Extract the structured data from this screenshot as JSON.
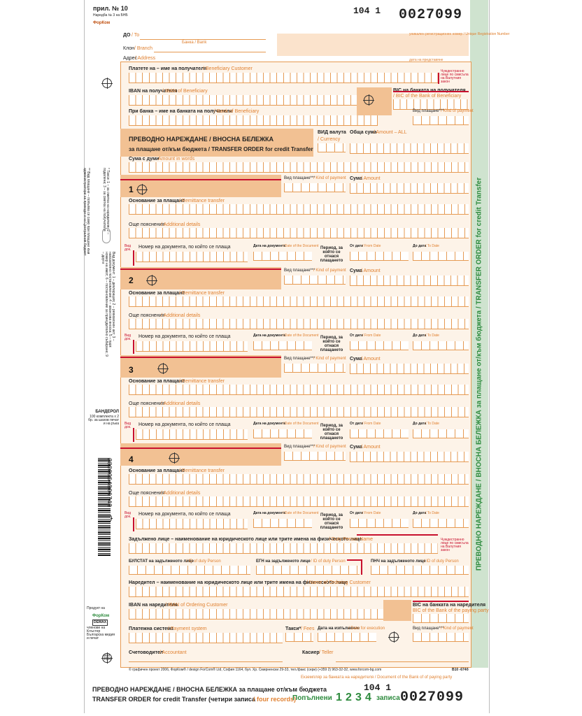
{
  "header": {
    "form_no": "прил. № 10",
    "form_sub": "Наредба № 3 на БНБ",
    "brand": "ФорКом",
    "code_left": "104 1",
    "serial": "0027099"
  },
  "top": {
    "to": "ДО",
    "to_en": "/ To",
    "bank_en": "Банка / Bank",
    "branch": "Клон",
    "branch_en": "/ Branch",
    "address": "Адрес",
    "address_en": "/ Address",
    "reg_no": "уникален регистрационен номер / Unique Registration Number",
    "date_submit": "дата на представяне"
  },
  "beneficiary": {
    "pay_to": "Платете на – име на получателя",
    "pay_to_en": "/ Beneficiary Customer",
    "iban": "IBAN на получателя",
    "iban_en": "/ IBAN of Beneficiary",
    "bic": "BIC на банката на получателя",
    "bic_en": "/ BIC of the Bank of Beneficiary",
    "at_bank": "При банка – име на банката на получателя",
    "at_bank_en": "/ Bank of Beneficiary",
    "kind": "Вид плащане***",
    "kind_en": "/ Kind of payment",
    "foreign": "Чуждестранно лице по смисъла на Валутния закон"
  },
  "title": {
    "main": "ПРЕВОДНО НАРЕЖДАНЕ / ВНОСНА БЕЛЕЖКА",
    "sub": "за плащане от/към бюджета / TRANSFER ORDER for credit Transfer",
    "currency": "ВИД валута",
    "currency_en": "/ Currency",
    "total": "Обща сума",
    "total_en": "/ Amount – ALL",
    "words": "Сума с думи",
    "words_en": "Amount in words"
  },
  "sections": [
    {
      "no": "1",
      "reason": "Основание за плащане",
      "reason_en": "/ Remittance transfer",
      "more": "Още пояснения",
      "more_en": "/ Additional details",
      "doc": "Номер на документа, по който се плаща",
      "doc_date": "Дата на документа",
      "doc_date_en": "/ Date of the Document",
      "period": "Период, за който се отнася плащането",
      "from": "От дата",
      "from_en": "/ From Date",
      "to": "До дата",
      "to_en": "/ To Date",
      "kind": "Вид плащане***",
      "kind_en": "/ Kind of payment",
      "amount": "Сума",
      "amount_en": "/ Amount",
      "vid": "Вид док."
    },
    {
      "no": "2",
      "reason": "Основание за плащане",
      "reason_en": "/ Remittance transfer",
      "more": "Още пояснения",
      "more_en": "/ Additional details",
      "doc": "Номер на документа, по който се плаща",
      "doc_date": "Дата на документа",
      "doc_date_en": "/ Date of the Document",
      "period": "Период, за който се отнася плащането",
      "from": "От дата",
      "from_en": "/ From Date",
      "to": "До дата",
      "to_en": "/ To Date",
      "kind": "Вид плащане***",
      "kind_en": "/ Kind of payment",
      "amount": "Сума",
      "amount_en": "/ Amount",
      "vid": "Вид док."
    },
    {
      "no": "3",
      "reason": "Основание за плащане",
      "reason_en": "/ Remittance transfer",
      "more": "Още пояснения",
      "more_en": "/ Additional details",
      "doc": "Номер на документа, по който се плаща",
      "doc_date": "Дата на документа",
      "doc_date_en": "/ Date of the Document",
      "period": "Период, за който се отнася плащането",
      "from": "От дата",
      "from_en": "/ From Date",
      "to": "До дата",
      "to_en": "/ To Date",
      "kind": "Вид плащане***",
      "kind_en": "/ Kind of payment",
      "amount": "Сума",
      "amount_en": "/ Amount",
      "vid": "Вид док."
    },
    {
      "no": "4",
      "reason": "Основание за плащане",
      "reason_en": "/ Remittance transfer",
      "more": "Още пояснения",
      "more_en": "/ Additional details",
      "doc": "Номер на документа, по който се плаща",
      "doc_date": "Дата на документа",
      "doc_date_en": "/ Date of the Document",
      "period": "Период, за който се отнася плащането",
      "from": "От дата",
      "from_en": "/ From Date",
      "to": "До дата",
      "to_en": "/ To Date",
      "kind": "Вид плащане***",
      "kind_en": "/ Kind of payment",
      "amount": "Сума",
      "amount_en": "/ Amount",
      "vid": "Вид док."
    }
  ],
  "bottom": {
    "duty": "Задължено лице – наименование на юридическото лице или трите имена на физическото лице",
    "duty_en": "/ Duty Person Name",
    "bulstat": "БУЛСТАТ на задълженото лице",
    "bulstat_en": "/ ID of duty Person",
    "egn": "ЕГН на задълженото лице",
    "egn_en": "/ ID of duty Person",
    "pnch": "ПНЧ на задълженото лице",
    "pnch_en": "/ ID of duty Person",
    "orderer": "Наредител – наименование на юридическото лице или трите имена на физическото лице",
    "orderer_en": "/ Name of Ordering Customer",
    "iban": "IBAN на наредителя",
    "iban_en": "/ IBAN of Ordering Customer",
    "bic": "BIC на банката на наредителя",
    "bic_en": "BIC of the Bank of the paying party",
    "system": "Платежна система",
    "system_en": "/ Payment system",
    "fees": "Такси*",
    "fees_en": "/ Fees",
    "exec_date": "Дата на изпълнение",
    "exec_date_en": "/ Date for execution",
    "kind": "Вид плащане***",
    "kind_en": "/ Kind of payment",
    "accountant": "Счетоводител",
    "accountant_en": "/ Accountant",
    "cashier": "Касиер",
    "cashier_en": "/ Teller",
    "foreign": "Чуждестранно лице по смисъла на Валутния закон"
  },
  "footer": {
    "copyright": "© графичен проект 2006, ФорКом® / design ForCom® Ltd, София 1164, бул. Хр. Смирненски 29-33, тел./факс (сери) (+359 2) 963-32-32, www.forcom-bg.com",
    "code": "В10 -674б",
    "copy_note": "Екземпляр за банката на наредителя / Document of the Bank of of paying party",
    "title1": "ПРЕВОДНО НАРЕЖДАНЕ / ВНОСНА БЕЛЕЖКА за плащане от/към бюджета",
    "title2": "TRANSFER ORDER for credit Transfer (четири записа",
    "title2b": "/ four records)",
    "filled": "Попълнени",
    "n1": "1",
    "n2": "2",
    "n3": "3",
    "n4": "4",
    "records": "записа",
    "code_left": "104 1",
    "serial": "0027099"
  },
  "side": {
    "green_vertical": "ПРЕВОДНО НАРЕЖДАНЕ / ВНОСНА БЕЛЕЖКА за плащане от/към бюджета / TRANSFER ORDER for credit Transfer",
    "bandarol": "БАНДЕРОЛ",
    "bandarol_sub": "100 комплекта x 2 бр. за шахов печат и на ръка",
    "barcode": "3800054806743",
    "product": "Продукт на",
    "demax": "DEMAX",
    "member": "членове на Клъстер Българска медия и печат",
    "date": "май 2006",
    "note1": "** Вид плащане – попълва се само при плащане към администратори на приходи и на Централния бюджет",
    "note2": "* Такси: 1 – за сметка на наредителя; 2 – поделени; 3 – за сметка на получателя",
    "note3": "Вид документ: 1 – декларация; 2 – ревизионен акт; 3 – наказателно постановление; 4 – авансова вноска; 5 – парт. номер на имот; 6 – постановление за принудително събиране; 9 – други"
  }
}
